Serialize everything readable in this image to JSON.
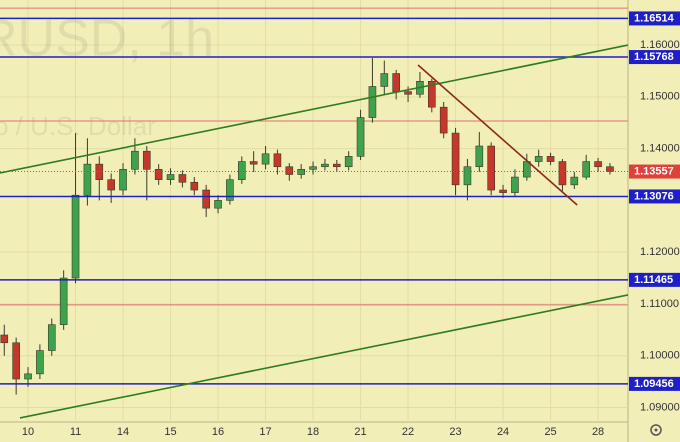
{
  "chart_data": {
    "type": "candlestick",
    "watermark": "RUSD, 1h",
    "watermark_subtitle": "o / U.S. Dollar",
    "xlim": [
      -0.59,
      12.63
    ],
    "ylim": [
      1.0872,
      1.1687
    ],
    "grid": true,
    "up_color": "#3fa34d",
    "down_color": "#c4372b",
    "xticks": [
      {
        "value": 0,
        "label": "10"
      },
      {
        "value": 1,
        "label": "11"
      },
      {
        "value": 2,
        "label": "14"
      },
      {
        "value": 3,
        "label": "15"
      },
      {
        "value": 4,
        "label": "16"
      },
      {
        "value": 5,
        "label": "17"
      },
      {
        "value": 6,
        "label": "18"
      },
      {
        "value": 7,
        "label": "21"
      },
      {
        "value": 8,
        "label": "22"
      },
      {
        "value": 9,
        "label": "23"
      },
      {
        "value": 10,
        "label": "24"
      },
      {
        "value": 11,
        "label": "25"
      },
      {
        "value": 12,
        "label": "28"
      }
    ],
    "yticks": [
      {
        "value": 1.16,
        "label": "1.16000"
      },
      {
        "value": 1.15,
        "label": "1.15000"
      },
      {
        "value": 1.14,
        "label": "1.14000"
      },
      {
        "value": 1.12,
        "label": "1.12000"
      },
      {
        "value": 1.11,
        "label": "1.11000"
      },
      {
        "value": 1.1,
        "label": "1.10000"
      },
      {
        "value": 1.09,
        "label": "1.09000"
      }
    ],
    "x": [
      -0.5,
      -0.25,
      0,
      0.25,
      0.5,
      0.75,
      1,
      1.25,
      1.5,
      1.75,
      2,
      2.25,
      2.5,
      2.75,
      3,
      3.25,
      3.5,
      3.75,
      4,
      4.25,
      4.5,
      4.75,
      5,
      5.25,
      5.5,
      5.75,
      6,
      6.25,
      6.5,
      6.75,
      7,
      7.25,
      7.5,
      7.75,
      8,
      8.25,
      8.5,
      8.75,
      9,
      9.25,
      9.5,
      9.75,
      10,
      10.25,
      10.5,
      10.75,
      11,
      11.25,
      11.5,
      11.75,
      12,
      12.25
    ],
    "open": [
      1.104,
      1.1025,
      1.0955,
      1.0965,
      1.101,
      1.106,
      1.115,
      1.131,
      1.137,
      1.134,
      1.132,
      1.136,
      1.1395,
      1.136,
      1.134,
      1.135,
      1.1335,
      1.132,
      1.1285,
      1.13,
      1.134,
      1.1375,
      1.137,
      1.139,
      1.1365,
      1.135,
      1.136,
      1.1365,
      1.137,
      1.1365,
      1.1385,
      1.146,
      1.152,
      1.1545,
      1.151,
      1.1505,
      1.153,
      1.148,
      1.143,
      1.133,
      1.1365,
      1.1405,
      1.132,
      1.1315,
      1.1345,
      1.1375,
      1.1385,
      1.1375,
      1.133,
      1.1345,
      1.1375,
      1.1365
    ],
    "high": [
      1.106,
      1.1035,
      1.0978,
      1.1022,
      1.1072,
      1.1165,
      1.143,
      1.142,
      1.1385,
      1.1352,
      1.1372,
      1.142,
      1.1405,
      1.137,
      1.1362,
      1.1358,
      1.1345,
      1.133,
      1.131,
      1.135,
      1.1385,
      1.1395,
      1.1405,
      1.1398,
      1.1372,
      1.137,
      1.1375,
      1.138,
      1.1378,
      1.1395,
      1.1475,
      1.1575,
      1.157,
      1.1552,
      1.152,
      1.1548,
      1.1535,
      1.149,
      1.144,
      1.138,
      1.1432,
      1.1412,
      1.133,
      1.136,
      1.139,
      1.1398,
      1.1392,
      1.138,
      1.1355,
      1.1388,
      1.1382,
      1.1372
    ],
    "low": [
      1.1,
      1.0925,
      1.094,
      1.0955,
      1.1,
      1.105,
      1.114,
      1.129,
      1.13,
      1.1295,
      1.131,
      1.135,
      1.13,
      1.133,
      1.133,
      1.1325,
      1.131,
      1.1268,
      1.1275,
      1.1292,
      1.1332,
      1.1355,
      1.136,
      1.135,
      1.1338,
      1.1342,
      1.135,
      1.1358,
      1.1355,
      1.1358,
      1.1378,
      1.145,
      1.1505,
      1.1495,
      1.149,
      1.1498,
      1.147,
      1.142,
      1.131,
      1.13,
      1.1355,
      1.131,
      1.1305,
      1.1308,
      1.1338,
      1.1365,
      1.1368,
      1.1318,
      1.1322,
      1.134,
      1.1355,
      1.135
    ],
    "close": [
      1.1025,
      1.0955,
      1.0965,
      1.101,
      1.106,
      1.115,
      1.131,
      1.137,
      1.134,
      1.132,
      1.136,
      1.1395,
      1.136,
      1.134,
      1.135,
      1.1335,
      1.132,
      1.1285,
      1.13,
      1.134,
      1.1375,
      1.137,
      1.139,
      1.1365,
      1.135,
      1.136,
      1.1365,
      1.137,
      1.1365,
      1.1385,
      1.146,
      1.152,
      1.1545,
      1.151,
      1.1505,
      1.153,
      1.148,
      1.143,
      1.133,
      1.1365,
      1.1405,
      1.132,
      1.1315,
      1.1345,
      1.1375,
      1.1385,
      1.1375,
      1.133,
      1.1345,
      1.1375,
      1.1365,
      1.13557
    ],
    "levels": [
      {
        "value": 1.16514,
        "color": "#1f1fc8"
      },
      {
        "value": 1.15768,
        "color": "#1f1fc8"
      },
      {
        "value": 1.13076,
        "color": "#1f1fc8"
      },
      {
        "value": 1.11465,
        "color": "#1f1fc8"
      },
      {
        "value": 1.09456,
        "color": "#1f1fc8"
      }
    ],
    "thin_lines": [
      {
        "value": 1.16714,
        "color": "#e07070"
      },
      {
        "value": 1.14533,
        "color": "#e07070"
      },
      {
        "value": 1.10981,
        "color": "#e07070"
      }
    ],
    "current_price": {
      "value": 1.13557,
      "color": "#e0403a"
    },
    "trendlines": [
      {
        "color": "#2f7d1f",
        "x": [
          -0.59,
          12.63
        ],
        "y": [
          1.13529,
          1.16
        ]
      },
      {
        "color": "#2f7d1f",
        "x": [
          -0.17,
          12.63
        ],
        "y": [
          1.08799,
          1.11174
        ]
      },
      {
        "color": "#8b2a1a",
        "x": [
          8.21,
          11.56
        ],
        "y": [
          1.15614,
          1.12911
        ]
      }
    ]
  }
}
